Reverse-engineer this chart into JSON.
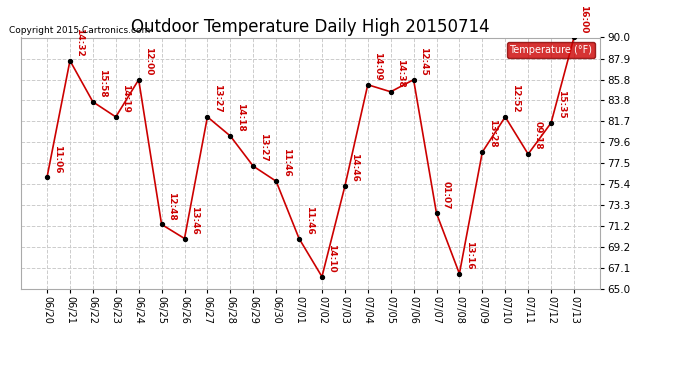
{
  "title": "Outdoor Temperature Daily High 20150714",
  "copyright": "Copyright 2015 Cartronics.com",
  "legend_label": "Temperature (°F)",
  "ylim": [
    65.0,
    90.0
  ],
  "yticks": [
    65.0,
    67.1,
    69.2,
    71.2,
    73.3,
    75.4,
    77.5,
    79.6,
    81.7,
    83.8,
    85.8,
    87.9,
    90.0
  ],
  "dates": [
    "06/20",
    "06/21",
    "06/22",
    "06/23",
    "06/24",
    "06/25",
    "06/26",
    "06/27",
    "06/28",
    "06/29",
    "06/30",
    "07/01",
    "07/02",
    "07/03",
    "07/04",
    "07/05",
    "07/06",
    "07/07",
    "07/08",
    "07/09",
    "07/10",
    "07/11",
    "07/12",
    "07/13"
  ],
  "values": [
    76.1,
    87.7,
    83.6,
    82.1,
    85.8,
    71.4,
    70.0,
    82.1,
    80.2,
    77.2,
    75.7,
    70.0,
    66.2,
    75.2,
    85.3,
    84.6,
    85.8,
    72.5,
    66.5,
    78.6,
    82.1,
    78.4,
    81.5,
    90.0
  ],
  "annotations": [
    "11:06",
    "14:32",
    "15:58",
    "14:19",
    "12:00",
    "12:48",
    "13:46",
    "13:27",
    "14:18",
    "13:27",
    "11:46",
    "11:46",
    "14:10",
    "14:46",
    "14:09",
    "14:38",
    "12:45",
    "01:07",
    "13:16",
    "13:28",
    "12:52",
    "09:18",
    "15:35",
    "16:00"
  ],
  "line_color": "#cc0000",
  "marker_color": "#000000",
  "annotation_color": "#cc0000",
  "bg_color": "#ffffff",
  "grid_color": "#cccccc",
  "legend_bg": "#cc0000",
  "legend_fg": "#ffffff",
  "title_fontsize": 12,
  "annot_fontsize": 6.5,
  "copyright_fontsize": 6.5,
  "xtick_fontsize": 7,
  "ytick_fontsize": 7.5
}
